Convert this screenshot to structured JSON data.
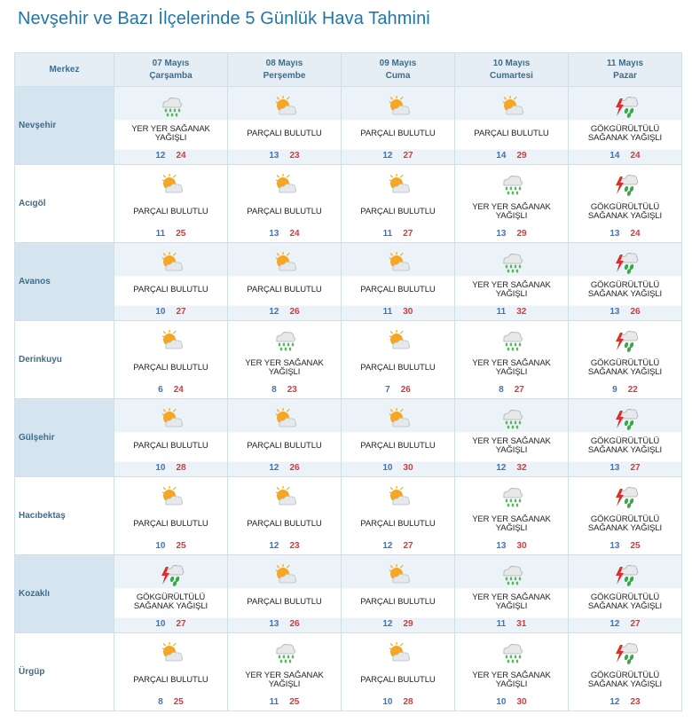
{
  "title": "Nevşehir ve Bazı İlçelerinde 5 Günlük Hava Tahmini",
  "header": {
    "merkez_label": "Merkez",
    "days": [
      {
        "date": "07 Mayıs",
        "weekday": "Çarşamba"
      },
      {
        "date": "08 Mayıs",
        "weekday": "Perşembe"
      },
      {
        "date": "09 Mayıs",
        "weekday": "Cuma"
      },
      {
        "date": "10 Mayıs",
        "weekday": "Cumartesi"
      },
      {
        "date": "11 Mayıs",
        "weekday": "Pazar"
      }
    ]
  },
  "colors": {
    "title": "#1f76ab",
    "min_temp": "#3f73b8",
    "max_temp": "#d23b3b",
    "header_bg": "#e5eef5",
    "row_shade": "#d5e5f0"
  },
  "rows": [
    {
      "city": "Nevşehir",
      "days": [
        {
          "cond": "YER YER SAĞANAK YAĞIŞLI",
          "icon": "rain-cloud-icon",
          "min": "12",
          "max": "24"
        },
        {
          "cond": "PARÇALI BULUTLU",
          "icon": "partly-cloudy-icon",
          "min": "13",
          "max": "23"
        },
        {
          "cond": "PARÇALI BULUTLU",
          "icon": "partly-cloudy-icon",
          "min": "12",
          "max": "27"
        },
        {
          "cond": "PARÇALI BULUTLU",
          "icon": "partly-cloudy-icon",
          "min": "14",
          "max": "29"
        },
        {
          "cond": "GÖKGÜRÜLTÜLÜ SAĞANAK YAĞIŞLI",
          "icon": "thunderstorm-icon",
          "min": "14",
          "max": "24"
        }
      ]
    },
    {
      "city": "Acıgöl",
      "days": [
        {
          "cond": "PARÇALI BULUTLU",
          "icon": "partly-cloudy-icon",
          "min": "11",
          "max": "25"
        },
        {
          "cond": "PARÇALI BULUTLU",
          "icon": "partly-cloudy-icon",
          "min": "13",
          "max": "24"
        },
        {
          "cond": "PARÇALI BULUTLU",
          "icon": "partly-cloudy-icon",
          "min": "11",
          "max": "27"
        },
        {
          "cond": "YER YER SAĞANAK YAĞIŞLI",
          "icon": "rain-cloud-icon",
          "min": "13",
          "max": "29"
        },
        {
          "cond": "GÖKGÜRÜLTÜLÜ SAĞANAK YAĞIŞLI",
          "icon": "thunderstorm-icon",
          "min": "13",
          "max": "24"
        }
      ]
    },
    {
      "city": "Avanos",
      "days": [
        {
          "cond": "PARÇALI BULUTLU",
          "icon": "partly-cloudy-icon",
          "min": "10",
          "max": "27"
        },
        {
          "cond": "PARÇALI BULUTLU",
          "icon": "partly-cloudy-icon",
          "min": "12",
          "max": "26"
        },
        {
          "cond": "PARÇALI BULUTLU",
          "icon": "partly-cloudy-icon",
          "min": "11",
          "max": "30"
        },
        {
          "cond": "YER YER SAĞANAK YAĞIŞLI",
          "icon": "rain-cloud-icon",
          "min": "11",
          "max": "32"
        },
        {
          "cond": "GÖKGÜRÜLTÜLÜ SAĞANAK YAĞIŞLI",
          "icon": "thunderstorm-icon",
          "min": "13",
          "max": "26"
        }
      ]
    },
    {
      "city": "Derinkuyu",
      "days": [
        {
          "cond": "PARÇALI BULUTLU",
          "icon": "partly-cloudy-icon",
          "min": "6",
          "max": "24"
        },
        {
          "cond": "YER YER SAĞANAK YAĞIŞLI",
          "icon": "rain-cloud-icon",
          "min": "8",
          "max": "23"
        },
        {
          "cond": "PARÇALI BULUTLU",
          "icon": "partly-cloudy-icon",
          "min": "7",
          "max": "26"
        },
        {
          "cond": "YER YER SAĞANAK YAĞIŞLI",
          "icon": "rain-cloud-icon",
          "min": "8",
          "max": "27"
        },
        {
          "cond": "GÖKGÜRÜLTÜLÜ SAĞANAK YAĞIŞLI",
          "icon": "thunderstorm-icon",
          "min": "9",
          "max": "22"
        }
      ]
    },
    {
      "city": "Gülşehir",
      "days": [
        {
          "cond": "PARÇALI BULUTLU",
          "icon": "partly-cloudy-icon",
          "min": "10",
          "max": "28"
        },
        {
          "cond": "PARÇALI BULUTLU",
          "icon": "partly-cloudy-icon",
          "min": "12",
          "max": "26"
        },
        {
          "cond": "PARÇALI BULUTLU",
          "icon": "partly-cloudy-icon",
          "min": "10",
          "max": "30"
        },
        {
          "cond": "YER YER SAĞANAK YAĞIŞLI",
          "icon": "rain-cloud-icon",
          "min": "12",
          "max": "32"
        },
        {
          "cond": "GÖKGÜRÜLTÜLÜ SAĞANAK YAĞIŞLI",
          "icon": "thunderstorm-icon",
          "min": "13",
          "max": "27"
        }
      ]
    },
    {
      "city": "Hacıbektaş",
      "days": [
        {
          "cond": "PARÇALI BULUTLU",
          "icon": "partly-cloudy-icon",
          "min": "10",
          "max": "25"
        },
        {
          "cond": "PARÇALI BULUTLU",
          "icon": "partly-cloudy-icon",
          "min": "12",
          "max": "23"
        },
        {
          "cond": "PARÇALI BULUTLU",
          "icon": "partly-cloudy-icon",
          "min": "12",
          "max": "27"
        },
        {
          "cond": "YER YER SAĞANAK YAĞIŞLI",
          "icon": "rain-cloud-icon",
          "min": "13",
          "max": "30"
        },
        {
          "cond": "GÖKGÜRÜLTÜLÜ SAĞANAK YAĞIŞLI",
          "icon": "thunderstorm-icon",
          "min": "13",
          "max": "25"
        }
      ]
    },
    {
      "city": "Kozaklı",
      "days": [
        {
          "cond": "GÖKGÜRÜLTÜLÜ SAĞANAK YAĞIŞLI",
          "icon": "thunderstorm-icon",
          "min": "10",
          "max": "27"
        },
        {
          "cond": "PARÇALI BULUTLU",
          "icon": "partly-cloudy-icon",
          "min": "13",
          "max": "26"
        },
        {
          "cond": "PARÇALI BULUTLU",
          "icon": "partly-cloudy-icon",
          "min": "12",
          "max": "29"
        },
        {
          "cond": "YER YER SAĞANAK YAĞIŞLI",
          "icon": "rain-cloud-icon",
          "min": "11",
          "max": "31"
        },
        {
          "cond": "GÖKGÜRÜLTÜLÜ SAĞANAK YAĞIŞLI",
          "icon": "thunderstorm-icon",
          "min": "12",
          "max": "27"
        }
      ]
    },
    {
      "city": "Ürgüp",
      "days": [
        {
          "cond": "PARÇALI BULUTLU",
          "icon": "partly-cloudy-icon",
          "min": "8",
          "max": "25"
        },
        {
          "cond": "YER YER SAĞANAK YAĞIŞLI",
          "icon": "rain-cloud-icon",
          "min": "11",
          "max": "25"
        },
        {
          "cond": "PARÇALI BULUTLU",
          "icon": "partly-cloudy-icon",
          "min": "10",
          "max": "28"
        },
        {
          "cond": "YER YER SAĞANAK YAĞIŞLI",
          "icon": "rain-cloud-icon",
          "min": "10",
          "max": "30"
        },
        {
          "cond": "GÖKGÜRÜLTÜLÜ SAĞANAK YAĞIŞLI",
          "icon": "thunderstorm-icon",
          "min": "12",
          "max": "23"
        }
      ]
    }
  ]
}
